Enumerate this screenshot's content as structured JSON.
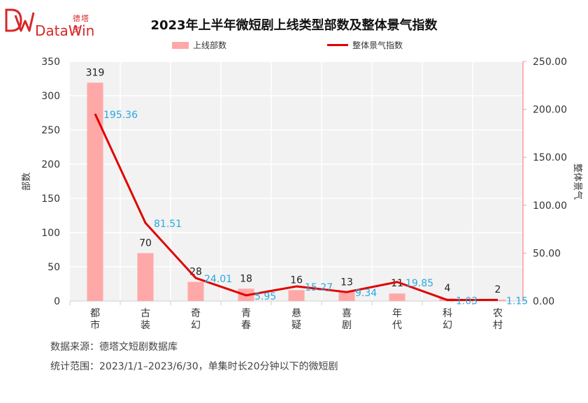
{
  "brand": {
    "name_cn": "德塔文",
    "name_en": "DataWin",
    "color": "#d62828"
  },
  "chart_data": {
    "type": "bar+line",
    "title": "2023年上半年微短剧上线类型部数及整体景气指数",
    "categories": [
      "都市",
      "古装",
      "奇幻",
      "青春",
      "悬疑",
      "喜剧",
      "年代",
      "科幻",
      "农村"
    ],
    "series": [
      {
        "name": "上线部数",
        "type": "bar",
        "axis": "left",
        "color": "#ffa8a8",
        "values": [
          319,
          70,
          28,
          18,
          16,
          13,
          11,
          4,
          2
        ]
      },
      {
        "name": "整体景气指数",
        "type": "line",
        "axis": "right",
        "color": "#e00000",
        "values": [
          195.36,
          81.51,
          24.01,
          5.95,
          15.27,
          9.34,
          19.85,
          1.03,
          1.15
        ],
        "labels": [
          "195.36",
          "81.51",
          "24.01",
          "5.95",
          "15.27",
          "9.34",
          "19.85",
          "1.03",
          "1.15"
        ]
      }
    ],
    "ylabel_left": "部数",
    "ylabel_right": "整体景气",
    "ylim_left": [
      0,
      350
    ],
    "ylim_right": [
      0,
      250
    ],
    "yticks_left": [
      "0",
      "50",
      "100",
      "150",
      "200",
      "250",
      "300",
      "350"
    ],
    "yticks_right": [
      "0.00",
      "50.00",
      "100.00",
      "150.00",
      "200.00",
      "250.00"
    ],
    "grid": true,
    "legend_position": "top-center",
    "value_label_color": "#29a8e0"
  },
  "footer": {
    "source": "数据来源：德塔文短剧数据库",
    "scope": "统计范围：2023/1/1–2023/6/30，单集时长20分钟以下的微短剧"
  }
}
